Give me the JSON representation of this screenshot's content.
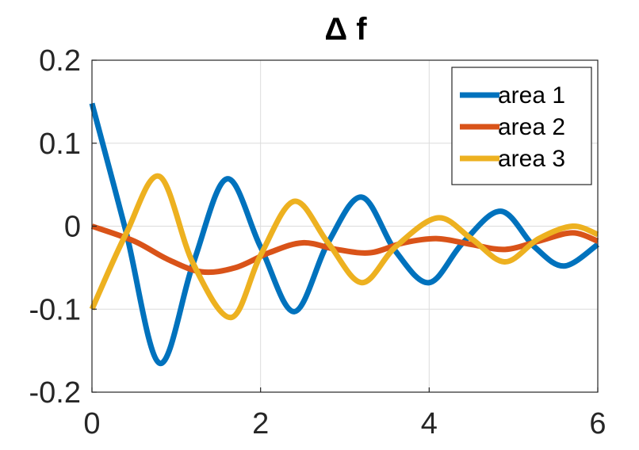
{
  "chart_data": {
    "type": "line",
    "title": "Δ f",
    "xlabel": "",
    "ylabel": "",
    "xlim": [
      0,
      6
    ],
    "ylim": [
      -0.2,
      0.2
    ],
    "xticks": [
      0,
      2,
      4,
      6
    ],
    "yticks": [
      0.2,
      0.1,
      0,
      -0.1,
      -0.2
    ],
    "xtick_labels": [
      "0",
      "2",
      "4",
      "6"
    ],
    "ytick_labels": [
      "0.2",
      "0.1",
      "0",
      "-0.1",
      "-0.2"
    ],
    "grid": true,
    "legend_position": "top-right",
    "series": [
      {
        "name": "area 1",
        "color": "#0072BD",
        "x": [
          0,
          0.4,
          0.8,
          1.2,
          1.6,
          2.0,
          2.4,
          2.8,
          3.2,
          3.6,
          4.0,
          4.4,
          4.85,
          5.25,
          5.6,
          6.0
        ],
        "y": [
          0.148,
          -0.005,
          -0.165,
          -0.045,
          0.057,
          -0.025,
          -0.103,
          -0.02,
          0.035,
          -0.03,
          -0.068,
          -0.02,
          0.018,
          -0.025,
          -0.048,
          -0.022
        ]
      },
      {
        "name": "area 2",
        "color": "#D95319",
        "x": [
          0,
          0.5,
          0.9,
          1.3,
          1.7,
          2.1,
          2.5,
          2.9,
          3.3,
          3.7,
          4.1,
          4.5,
          4.9,
          5.3,
          5.7,
          6.0
        ],
        "y": [
          0,
          -0.018,
          -0.04,
          -0.055,
          -0.05,
          -0.032,
          -0.02,
          -0.028,
          -0.032,
          -0.02,
          -0.015,
          -0.022,
          -0.028,
          -0.018,
          -0.008,
          -0.018
        ]
      },
      {
        "name": "area 3",
        "color": "#EDB120",
        "x": [
          0,
          0.4,
          0.8,
          1.2,
          1.65,
          2.0,
          2.4,
          2.8,
          3.2,
          3.6,
          4.1,
          4.5,
          4.9,
          5.3,
          5.7,
          6.0
        ],
        "y": [
          -0.1,
          -0.01,
          0.06,
          -0.045,
          -0.11,
          -0.035,
          0.03,
          -0.02,
          -0.068,
          -0.025,
          0.01,
          -0.015,
          -0.043,
          -0.015,
          0.0,
          -0.01
        ]
      }
    ]
  }
}
